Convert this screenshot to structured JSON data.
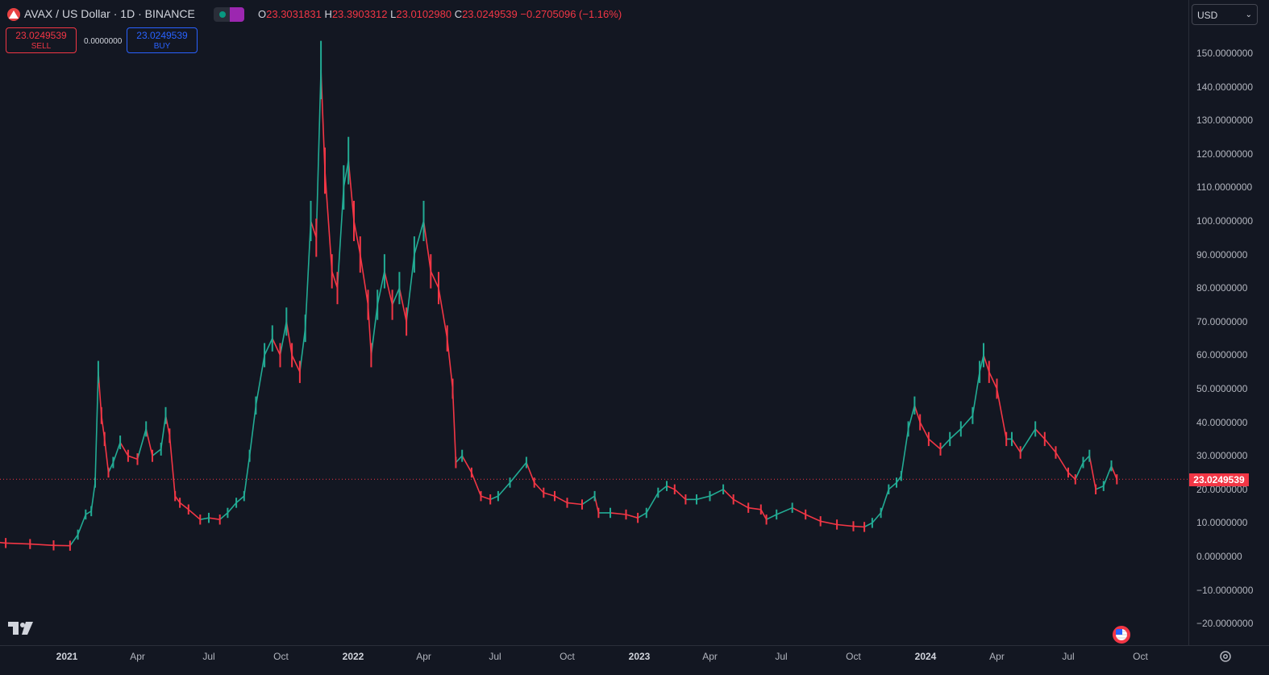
{
  "header": {
    "symbol_title": "AVAX / US Dollar · 1D · BINANCE",
    "ohlc": {
      "o_key": "O",
      "o_val": "23.3031831",
      "h_key": "H",
      "h_val": "23.3903312",
      "l_key": "L",
      "l_val": "23.0102980",
      "c_key": "C",
      "c_val": "23.0249539",
      "change": "−0.2705096 (−1.16%)"
    }
  },
  "trade": {
    "sell_price": "23.0249539",
    "sell_label": "SELL",
    "spread": "0.0000000",
    "buy_price": "23.0249539",
    "buy_label": "BUY"
  },
  "currency": {
    "value": "USD"
  },
  "last_price": "23.0249539",
  "icons": {
    "logo": "avalanche-logo-icon",
    "status": "market-status-icon",
    "flag": "us-flag-icon",
    "settings": "gear-icon",
    "brand": "tradingview-logo-icon"
  },
  "colors": {
    "up": "#22ab94",
    "down": "#f23645",
    "background": "#131722",
    "last_price_line": "#f23645"
  },
  "chart_data": {
    "type": "line",
    "title": "AVAX / US Dollar · 1D · BINANCE",
    "xlabel": "",
    "ylabel": "",
    "ylim": [
      -25,
      160
    ],
    "y_ticks": [
      "150.0000000",
      "140.0000000",
      "130.0000000",
      "120.0000000",
      "110.0000000",
      "100.0000000",
      "90.0000000",
      "80.0000000",
      "70.0000000",
      "60.0000000",
      "50.0000000",
      "40.0000000",
      "30.0000000",
      "20.0000000",
      "10.0000000",
      "0.0000000",
      "−10.0000000",
      "−20.0000000"
    ],
    "y_tick_values": [
      150,
      140,
      130,
      120,
      110,
      100,
      90,
      80,
      70,
      60,
      50,
      40,
      30,
      20,
      10,
      0,
      -10,
      -20
    ],
    "x_ticks": [
      {
        "label": "2021",
        "date": "2021-01-01",
        "major": true
      },
      {
        "label": "Apr",
        "date": "2021-04-01",
        "major": false
      },
      {
        "label": "Jul",
        "date": "2021-07-01",
        "major": false
      },
      {
        "label": "Oct",
        "date": "2021-10-01",
        "major": false
      },
      {
        "label": "2022",
        "date": "2022-01-01",
        "major": true
      },
      {
        "label": "Apr",
        "date": "2022-04-01",
        "major": false
      },
      {
        "label": "Jul",
        "date": "2022-07-01",
        "major": false
      },
      {
        "label": "Oct",
        "date": "2022-10-01",
        "major": false
      },
      {
        "label": "2023",
        "date": "2023-01-01",
        "major": true
      },
      {
        "label": "Apr",
        "date": "2023-04-01",
        "major": false
      },
      {
        "label": "Jul",
        "date": "2023-07-01",
        "major": false
      },
      {
        "label": "Oct",
        "date": "2023-10-01",
        "major": false
      },
      {
        "label": "2024",
        "date": "2024-01-01",
        "major": true
      },
      {
        "label": "Apr",
        "date": "2024-04-01",
        "major": false
      },
      {
        "label": "Jul",
        "date": "2024-07-01",
        "major": false
      },
      {
        "label": "Oct",
        "date": "2024-10-01",
        "major": false
      }
    ],
    "series": [
      {
        "values": [
          [
            "2020-09-22",
            4.5
          ],
          [
            "2020-10-15",
            4.0
          ],
          [
            "2020-11-15",
            3.7
          ],
          [
            "2020-12-15",
            3.3
          ],
          [
            "2021-01-05",
            3.2
          ],
          [
            "2021-01-15",
            6.5
          ],
          [
            "2021-01-25",
            12.5
          ],
          [
            "2021-02-01",
            13.5
          ],
          [
            "2021-02-06",
            22.0
          ],
          [
            "2021-02-10",
            55.0
          ],
          [
            "2021-02-14",
            42.0
          ],
          [
            "2021-02-18",
            35.0
          ],
          [
            "2021-02-23",
            25.0
          ],
          [
            "2021-03-01",
            28.0
          ],
          [
            "2021-03-10",
            34.0
          ],
          [
            "2021-03-20",
            30.0
          ],
          [
            "2021-04-01",
            29.0
          ],
          [
            "2021-04-12",
            38.0
          ],
          [
            "2021-04-20",
            30.0
          ],
          [
            "2021-05-01",
            32.0
          ],
          [
            "2021-05-07",
            42.0
          ],
          [
            "2021-05-12",
            36.0
          ],
          [
            "2021-05-19",
            18.0
          ],
          [
            "2021-05-25",
            16.0
          ],
          [
            "2021-06-05",
            14.0
          ],
          [
            "2021-06-20",
            11.0
          ],
          [
            "2021-07-01",
            11.5
          ],
          [
            "2021-07-15",
            11.0
          ],
          [
            "2021-07-25",
            13.0
          ],
          [
            "2021-08-05",
            16.0
          ],
          [
            "2021-08-15",
            18.0
          ],
          [
            "2021-08-22",
            30.0
          ],
          [
            "2021-08-30",
            45.0
          ],
          [
            "2021-09-10",
            60.0
          ],
          [
            "2021-09-20",
            65.0
          ],
          [
            "2021-09-30",
            60.0
          ],
          [
            "2021-10-08",
            70.0
          ],
          [
            "2021-10-15",
            60.0
          ],
          [
            "2021-10-25",
            55.0
          ],
          [
            "2021-11-01",
            68.0
          ],
          [
            "2021-11-08",
            100.0
          ],
          [
            "2021-11-15",
            95.0
          ],
          [
            "2021-11-21",
            145.0
          ],
          [
            "2021-11-26",
            115.0
          ],
          [
            "2021-12-05",
            85.0
          ],
          [
            "2021-12-12",
            80.0
          ],
          [
            "2021-12-20",
            110.0
          ],
          [
            "2021-12-26",
            118.0
          ],
          [
            "2022-01-02",
            100.0
          ],
          [
            "2022-01-10",
            90.0
          ],
          [
            "2022-01-20",
            75.0
          ],
          [
            "2022-01-24",
            60.0
          ],
          [
            "2022-02-01",
            75.0
          ],
          [
            "2022-02-10",
            85.0
          ],
          [
            "2022-02-20",
            75.0
          ],
          [
            "2022-03-01",
            80.0
          ],
          [
            "2022-03-10",
            70.0
          ],
          [
            "2022-03-20",
            90.0
          ],
          [
            "2022-04-01",
            100.0
          ],
          [
            "2022-04-10",
            85.0
          ],
          [
            "2022-04-20",
            80.0
          ],
          [
            "2022-05-01",
            65.0
          ],
          [
            "2022-05-08",
            50.0
          ],
          [
            "2022-05-12",
            28.0
          ],
          [
            "2022-05-20",
            30.0
          ],
          [
            "2022-06-01",
            25.0
          ],
          [
            "2022-06-13",
            18.0
          ],
          [
            "2022-06-25",
            17.0
          ],
          [
            "2022-07-05",
            18.0
          ],
          [
            "2022-07-20",
            22.0
          ],
          [
            "2022-08-10",
            28.0
          ],
          [
            "2022-08-20",
            22.0
          ],
          [
            "2022-09-01",
            19.0
          ],
          [
            "2022-09-15",
            18.0
          ],
          [
            "2022-10-01",
            16.0
          ],
          [
            "2022-10-20",
            15.5
          ],
          [
            "2022-11-05",
            18.0
          ],
          [
            "2022-11-10",
            13.0
          ],
          [
            "2022-11-25",
            13.0
          ],
          [
            "2022-12-15",
            12.5
          ],
          [
            "2022-12-30",
            11.5
          ],
          [
            "2023-01-10",
            13.0
          ],
          [
            "2023-01-25",
            19.0
          ],
          [
            "2023-02-05",
            21.0
          ],
          [
            "2023-02-15",
            20.0
          ],
          [
            "2023-03-01",
            17.0
          ],
          [
            "2023-03-15",
            17.0
          ],
          [
            "2023-04-01",
            18.0
          ],
          [
            "2023-04-18",
            20.0
          ],
          [
            "2023-05-01",
            17.0
          ],
          [
            "2023-05-20",
            14.5
          ],
          [
            "2023-06-05",
            14.0
          ],
          [
            "2023-06-12",
            11.0
          ],
          [
            "2023-06-25",
            12.5
          ],
          [
            "2023-07-15",
            14.5
          ],
          [
            "2023-08-01",
            12.5
          ],
          [
            "2023-08-20",
            10.5
          ],
          [
            "2023-09-10",
            9.5
          ],
          [
            "2023-10-01",
            9.0
          ],
          [
            "2023-10-15",
            8.8
          ],
          [
            "2023-10-25",
            10.0
          ],
          [
            "2023-11-05",
            13.0
          ],
          [
            "2023-11-15",
            20.0
          ],
          [
            "2023-11-25",
            22.0
          ],
          [
            "2023-12-01",
            24.0
          ],
          [
            "2023-12-10",
            38.0
          ],
          [
            "2023-12-18",
            45.0
          ],
          [
            "2023-12-25",
            40.0
          ],
          [
            "2024-01-05",
            35.0
          ],
          [
            "2024-01-20",
            32.0
          ],
          [
            "2024-02-01",
            35.0
          ],
          [
            "2024-02-15",
            38.0
          ],
          [
            "2024-03-01",
            42.0
          ],
          [
            "2024-03-10",
            55.0
          ],
          [
            "2024-03-15",
            60.0
          ],
          [
            "2024-03-22",
            55.0
          ],
          [
            "2024-04-01",
            50.0
          ],
          [
            "2024-04-13",
            35.0
          ],
          [
            "2024-04-20",
            35.0
          ],
          [
            "2024-05-01",
            31.0
          ],
          [
            "2024-05-20",
            38.0
          ],
          [
            "2024-06-01",
            35.0
          ],
          [
            "2024-06-15",
            31.0
          ],
          [
            "2024-07-01",
            25.0
          ],
          [
            "2024-07-10",
            23.0
          ],
          [
            "2024-07-20",
            28.0
          ],
          [
            "2024-07-28",
            30.0
          ],
          [
            "2024-08-05",
            20.0
          ],
          [
            "2024-08-15",
            21.0
          ],
          [
            "2024-08-25",
            27.0
          ],
          [
            "2024-09-01",
            23.0
          ]
        ]
      }
    ],
    "last_price_line": 23.0249539,
    "grid": false,
    "legend": "none"
  }
}
